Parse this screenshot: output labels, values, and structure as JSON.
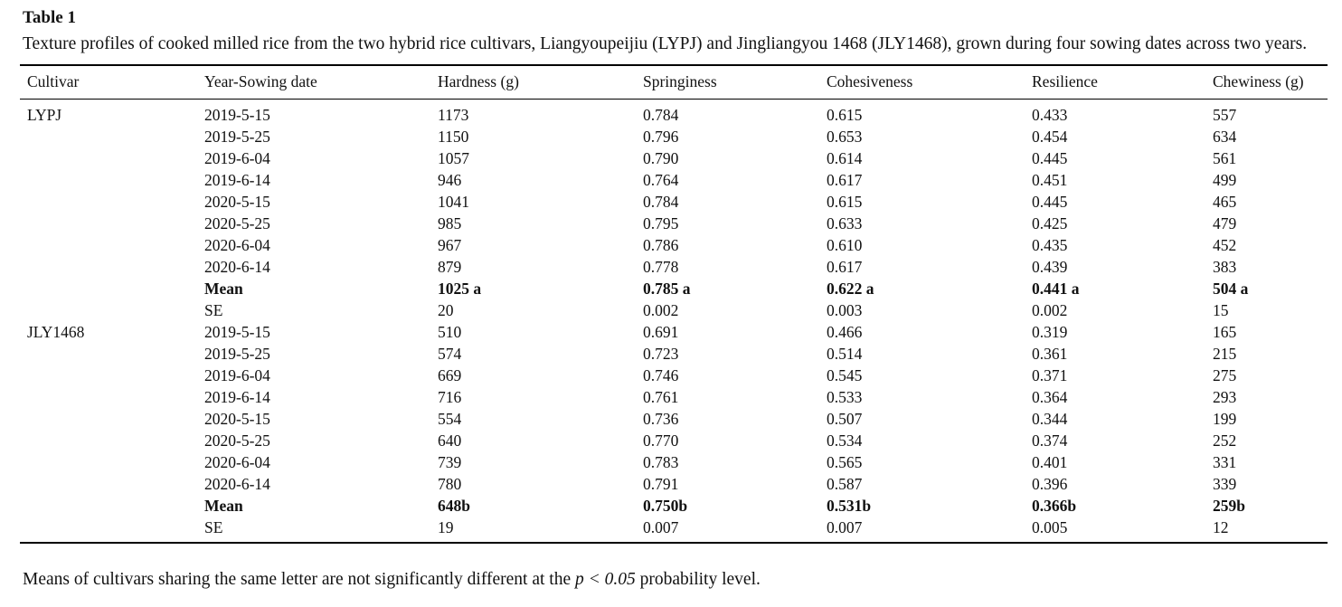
{
  "table": {
    "label": "Table 1",
    "caption": "Texture profiles of cooked milled rice from the two hybrid rice cultivars, Liangyoupeijiu (LYPJ) and Jingliangyou 1468 (JLY1468), grown during four sowing dates across two years.",
    "columns": [
      "Cultivar",
      "Year-Sowing date",
      "Hardness (g)",
      "Springiness",
      "Cohesiveness",
      "Resilience",
      "Chewiness (g)"
    ],
    "rows": [
      {
        "cultivar": "LYPJ",
        "date": "2019-5-15",
        "hardness": "1173",
        "springiness": "0.784",
        "cohesiveness": "0.615",
        "resilience": "0.433",
        "chewiness": "557",
        "bold": false
      },
      {
        "cultivar": "",
        "date": "2019-5-25",
        "hardness": "1150",
        "springiness": "0.796",
        "cohesiveness": "0.653",
        "resilience": "0.454",
        "chewiness": "634",
        "bold": false
      },
      {
        "cultivar": "",
        "date": "2019-6-04",
        "hardness": "1057",
        "springiness": "0.790",
        "cohesiveness": "0.614",
        "resilience": "0.445",
        "chewiness": "561",
        "bold": false
      },
      {
        "cultivar": "",
        "date": "2019-6-14",
        "hardness": "946",
        "springiness": "0.764",
        "cohesiveness": "0.617",
        "resilience": "0.451",
        "chewiness": "499",
        "bold": false
      },
      {
        "cultivar": "",
        "date": "2020-5-15",
        "hardness": "1041",
        "springiness": "0.784",
        "cohesiveness": "0.615",
        "resilience": "0.445",
        "chewiness": "465",
        "bold": false
      },
      {
        "cultivar": "",
        "date": "2020-5-25",
        "hardness": "985",
        "springiness": "0.795",
        "cohesiveness": "0.633",
        "resilience": "0.425",
        "chewiness": "479",
        "bold": false
      },
      {
        "cultivar": "",
        "date": "2020-6-04",
        "hardness": "967",
        "springiness": "0.786",
        "cohesiveness": "0.610",
        "resilience": "0.435",
        "chewiness": "452",
        "bold": false
      },
      {
        "cultivar": "",
        "date": "2020-6-14",
        "hardness": "879",
        "springiness": "0.778",
        "cohesiveness": "0.617",
        "resilience": "0.439",
        "chewiness": "383",
        "bold": false
      },
      {
        "cultivar": "",
        "date": "Mean",
        "hardness": "1025 a",
        "springiness": "0.785 a",
        "cohesiveness": "0.622 a",
        "resilience": "0.441 a",
        "chewiness": "504 a",
        "bold": true
      },
      {
        "cultivar": "",
        "date": "SE",
        "hardness": "20",
        "springiness": "0.002",
        "cohesiveness": "0.003",
        "resilience": "0.002",
        "chewiness": "15",
        "bold": false
      },
      {
        "cultivar": "JLY1468",
        "date": "2019-5-15",
        "hardness": "510",
        "springiness": "0.691",
        "cohesiveness": "0.466",
        "resilience": "0.319",
        "chewiness": "165",
        "bold": false
      },
      {
        "cultivar": "",
        "date": "2019-5-25",
        "hardness": "574",
        "springiness": "0.723",
        "cohesiveness": "0.514",
        "resilience": "0.361",
        "chewiness": "215",
        "bold": false
      },
      {
        "cultivar": "",
        "date": "2019-6-04",
        "hardness": "669",
        "springiness": "0.746",
        "cohesiveness": "0.545",
        "resilience": "0.371",
        "chewiness": "275",
        "bold": false
      },
      {
        "cultivar": "",
        "date": "2019-6-14",
        "hardness": "716",
        "springiness": "0.761",
        "cohesiveness": "0.533",
        "resilience": "0.364",
        "chewiness": "293",
        "bold": false
      },
      {
        "cultivar": "",
        "date": "2020-5-15",
        "hardness": "554",
        "springiness": "0.736",
        "cohesiveness": "0.507",
        "resilience": "0.344",
        "chewiness": "199",
        "bold": false
      },
      {
        "cultivar": "",
        "date": "2020-5-25",
        "hardness": "640",
        "springiness": "0.770",
        "cohesiveness": "0.534",
        "resilience": "0.374",
        "chewiness": "252",
        "bold": false
      },
      {
        "cultivar": "",
        "date": "2020-6-04",
        "hardness": "739",
        "springiness": "0.783",
        "cohesiveness": "0.565",
        "resilience": "0.401",
        "chewiness": "331",
        "bold": false
      },
      {
        "cultivar": "",
        "date": "2020-6-14",
        "hardness": "780",
        "springiness": "0.791",
        "cohesiveness": "0.587",
        "resilience": "0.396",
        "chewiness": "339",
        "bold": false
      },
      {
        "cultivar": "",
        "date": "Mean",
        "hardness": "648b",
        "springiness": "0.750b",
        "cohesiveness": "0.531b",
        "resilience": "0.366b",
        "chewiness": "259b",
        "bold": true
      },
      {
        "cultivar": "",
        "date": "SE",
        "hardness": "19",
        "springiness": "0.007",
        "cohesiveness": "0.007",
        "resilience": "0.005",
        "chewiness": "12",
        "bold": false
      }
    ],
    "footnote": {
      "pre": "Means of cultivars sharing the same letter are not significantly different at the ",
      "emph": "p < 0.05",
      "post": " probability level."
    }
  }
}
